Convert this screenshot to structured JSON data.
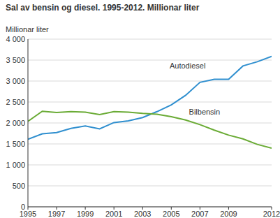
{
  "chart_data": {
    "type": "line",
    "title": "Sal av bensin og diesel. 1995-2012. Millionar liter",
    "y_label": "Millionar liter",
    "x": [
      1995,
      1996,
      1997,
      1998,
      1999,
      2000,
      2001,
      2002,
      2003,
      2004,
      2005,
      2006,
      2007,
      2008,
      2009,
      2010,
      2011,
      2012
    ],
    "series": [
      {
        "name": "Autodiesel",
        "color": "#2f8fcf",
        "values": [
          1610,
          1740,
          1770,
          1870,
          1930,
          1860,
          2010,
          2050,
          2130,
          2270,
          2430,
          2660,
          2970,
          3040,
          3040,
          3360,
          3460,
          3590
        ]
      },
      {
        "name": "Bilbensin",
        "color": "#6aab35",
        "values": [
          2040,
          2280,
          2250,
          2270,
          2260,
          2200,
          2270,
          2260,
          2230,
          2210,
          2150,
          2070,
          1960,
          1830,
          1710,
          1620,
          1490,
          1400
        ]
      }
    ],
    "xlim": [
      1995,
      2012
    ],
    "xticks": [
      1995,
      1997,
      1999,
      2001,
      2003,
      2005,
      2007,
      2009,
      2012
    ],
    "ylim": [
      0,
      4000
    ],
    "yticks": [
      0,
      500,
      {
        "value": 1000,
        "label": "1 000"
      },
      {
        "value": 1500,
        "label": "1 500"
      },
      {
        "value": 2000,
        "label": "2 000"
      },
      {
        "value": 2500,
        "label": "2 500"
      },
      {
        "value": 3000,
        "label": "3 000"
      },
      {
        "value": 3500,
        "label": "3 500"
      },
      {
        "value": 4000,
        "label": "4 000"
      }
    ],
    "grid": true
  }
}
